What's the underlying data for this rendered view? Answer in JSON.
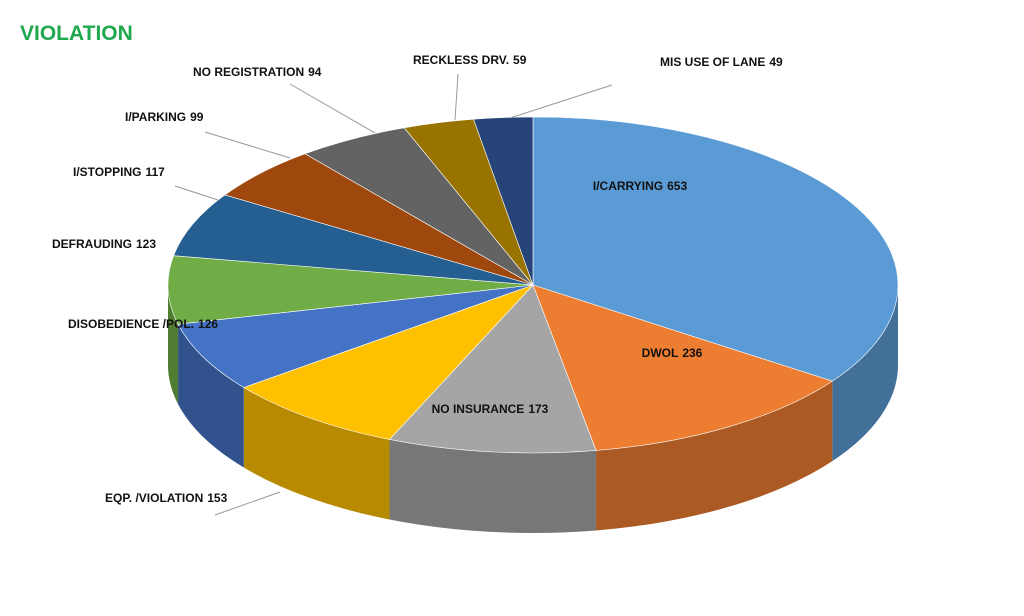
{
  "chart_data": {
    "type": "pie",
    "title": "VIOLATION",
    "categories": [
      "I/CARRYING",
      "DWOL",
      "NO INSURANCE",
      "EQP. /VIOLATION",
      "DISOBEDIENCE /POL.",
      "DEFRAUDING",
      "I/STOPPING",
      "I/PARKING",
      "NO REGISTRATION",
      "RECKLESS DRV.",
      "MIS USE OF LANE"
    ],
    "values": [
      653,
      236,
      173,
      153,
      126,
      123,
      117,
      99,
      94,
      59,
      49
    ],
    "colors": [
      "#5b9bd5",
      "#ed7d31",
      "#a5a5a5",
      "#ffc000",
      "#4472c4",
      "#70ad47",
      "#255e91",
      "#9e480e",
      "#636363",
      "#997300",
      "#264478"
    ]
  }
}
